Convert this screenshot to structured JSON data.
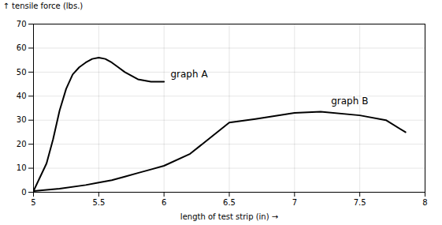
{
  "chart_data": {
    "type": "line",
    "xlabel": "length of test strip (in)",
    "ylabel": "tensile force (lbs.)",
    "xlim": [
      5,
      8
    ],
    "ylim": [
      0,
      70
    ],
    "xticks": [
      5,
      5.5,
      6,
      6.5,
      7,
      7.5,
      8
    ],
    "yticks": [
      0,
      10,
      20,
      30,
      40,
      50,
      60,
      70
    ],
    "grid": true,
    "series": [
      {
        "name": "graph A",
        "color": "#000000",
        "x": [
          5.0,
          5.1,
          5.15,
          5.2,
          5.25,
          5.3,
          5.35,
          5.4,
          5.45,
          5.5,
          5.55,
          5.6,
          5.65,
          5.7,
          5.8,
          5.9,
          6.0
        ],
        "values": [
          0.5,
          12,
          22,
          34,
          43,
          49,
          52,
          54,
          55.5,
          56,
          55.5,
          54,
          52,
          50,
          47,
          46,
          46
        ]
      },
      {
        "name": "graph B",
        "color": "#000000",
        "x": [
          5.0,
          5.2,
          5.4,
          5.5,
          5.6,
          5.7,
          5.8,
          5.9,
          6.0,
          6.2,
          6.5,
          6.7,
          7.0,
          7.2,
          7.5,
          7.7,
          7.85
        ],
        "values": [
          0.5,
          1.5,
          3,
          4,
          5,
          6.5,
          8,
          9.5,
          11,
          16,
          29,
          30.5,
          33,
          33.5,
          32,
          30,
          25
        ]
      }
    ],
    "annotations": [
      {
        "text": "graph A",
        "x": 6.05,
        "y": 49
      },
      {
        "text": "graph B",
        "x": 7.28,
        "y": 38
      }
    ]
  }
}
